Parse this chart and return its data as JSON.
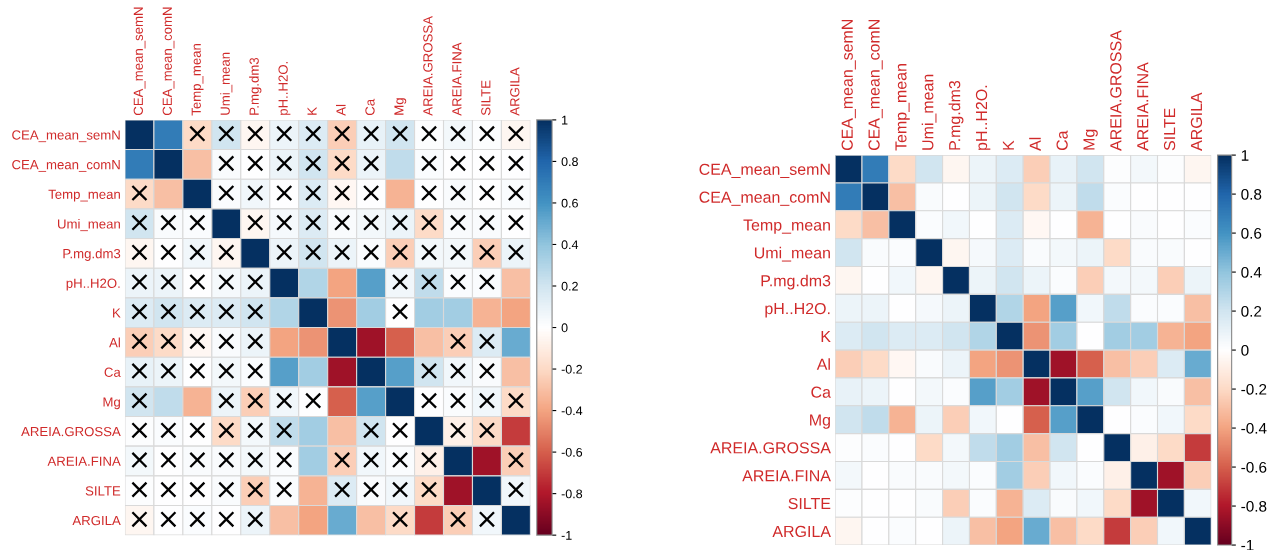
{
  "chart_data": [
    {
      "type": "heatmap",
      "categories": [
        "CEA_mean_semN",
        "CEA_mean_comN",
        "Temp_mean",
        "Umi_mean",
        "P.mg.dm3",
        "pH..H2O.",
        "K",
        "Al",
        "Ca",
        "Mg",
        "AREIA.GROSSA",
        "AREIA.FINA",
        "SILTE",
        "ARGILA"
      ],
      "y_categories": [
        "CEA_mean_semN",
        "CEA_mean_comN",
        "Temp_mean",
        "Umi_mean",
        "P.mg.dm3",
        "pH..H2O.",
        "K",
        "Al",
        "Ca",
        "Mg",
        "AREIA.GROSSA",
        "AREIA.FINA",
        "SILTE",
        "ARGILA"
      ],
      "cells": [
        [
          1,
          0.7,
          -0.2,
          0.2,
          -0.05,
          0.08,
          0.15,
          -0.25,
          0.1,
          0.2,
          0.01,
          0.05,
          0.01,
          -0.05
        ],
        [
          0.7,
          1,
          -0.3,
          0.03,
          0,
          0.08,
          0.2,
          -0.2,
          0.08,
          0.25,
          0.02,
          0,
          0,
          0
        ],
        [
          -0.2,
          -0.3,
          1,
          0.02,
          0.06,
          0,
          0.15,
          -0.04,
          0,
          -0.35,
          0,
          0.03,
          0,
          0.02
        ],
        [
          0.2,
          0.03,
          0.02,
          1,
          -0.05,
          0.04,
          0.15,
          0.03,
          0.05,
          0.08,
          -0.2,
          0.03,
          0.03,
          0
        ],
        [
          -0.05,
          0,
          0.06,
          -0.05,
          1,
          0.08,
          0.2,
          0.08,
          0.02,
          -0.25,
          0.05,
          0.05,
          -0.25,
          0.08
        ],
        [
          0.08,
          0.08,
          0,
          0.04,
          0.08,
          1,
          0.3,
          -0.4,
          0.55,
          0.06,
          0.25,
          0.02,
          0.02,
          -0.3
        ],
        [
          0.15,
          0.2,
          0.15,
          0.15,
          0.2,
          0.3,
          1,
          -0.45,
          0.35,
          0,
          0.35,
          0.35,
          -0.35,
          -0.4
        ],
        [
          -0.25,
          -0.2,
          -0.04,
          0.03,
          0.08,
          -0.4,
          -0.45,
          1,
          -0.85,
          -0.6,
          -0.3,
          -0.25,
          0.15,
          0.5
        ],
        [
          0.1,
          0.08,
          0,
          0.05,
          0.02,
          0.55,
          0.35,
          -0.85,
          1,
          0.55,
          0.2,
          0.06,
          0.03,
          -0.3
        ],
        [
          0.2,
          0.25,
          -0.35,
          0.08,
          -0.25,
          0.06,
          0,
          -0.6,
          0.55,
          1,
          0,
          0.02,
          0.06,
          -0.2
        ],
        [
          0.01,
          0.02,
          0,
          -0.2,
          0.05,
          0.25,
          0.35,
          -0.3,
          0.2,
          0,
          1,
          -0.08,
          -0.2,
          -0.7
        ],
        [
          0.05,
          0,
          0.03,
          0.03,
          0.05,
          0.02,
          0.35,
          -0.25,
          0.06,
          0.02,
          -0.08,
          1,
          -0.85,
          -0.25
        ],
        [
          0.01,
          0,
          0,
          0.03,
          -0.25,
          0.02,
          -0.35,
          0.15,
          0.03,
          0.06,
          -0.2,
          -0.85,
          1,
          0.06
        ],
        [
          -0.05,
          0,
          0.02,
          0,
          0.08,
          -0.3,
          -0.4,
          0.5,
          -0.3,
          -0.2,
          -0.7,
          -0.25,
          0.06,
          1
        ]
      ],
      "cell_labels": [
        [
          null,
          null,
          "×",
          "×",
          "×",
          "×",
          "×",
          "×",
          "×",
          "×",
          "×",
          "×",
          "×",
          "×"
        ],
        [
          null,
          null,
          null,
          "×",
          "×",
          "×",
          "×",
          "×",
          "×",
          null,
          "×",
          "×",
          "×",
          "×"
        ],
        [
          "×",
          null,
          null,
          "×",
          "×",
          "×",
          "×",
          "×",
          "×",
          null,
          "×",
          "×",
          "×",
          "×"
        ],
        [
          "×",
          "×",
          "×",
          null,
          "×",
          "×",
          "×",
          "×",
          "×",
          "×",
          "×",
          "×",
          "×",
          "×"
        ],
        [
          "×",
          "×",
          "×",
          "×",
          null,
          "×",
          "×",
          "×",
          "×",
          "×",
          "×",
          "×",
          "×",
          "×"
        ],
        [
          "×",
          "×",
          "×",
          "×",
          "×",
          null,
          null,
          null,
          null,
          "×",
          "×",
          "×",
          "×",
          null
        ],
        [
          "×",
          "×",
          "×",
          "×",
          "×",
          null,
          null,
          null,
          null,
          "×",
          null,
          null,
          null,
          null
        ],
        [
          "×",
          "×",
          "×",
          "×",
          "×",
          null,
          null,
          null,
          null,
          null,
          null,
          "×",
          "×",
          null
        ],
        [
          "×",
          "×",
          "×",
          "×",
          "×",
          null,
          null,
          null,
          null,
          null,
          "×",
          "×",
          "×",
          null
        ],
        [
          "×",
          null,
          null,
          "×",
          "×",
          "×",
          "×",
          null,
          null,
          null,
          "×",
          "×",
          "×",
          "×"
        ],
        [
          "×",
          "×",
          "×",
          "×",
          "×",
          "×",
          null,
          null,
          "×",
          "×",
          null,
          "×",
          "×",
          null
        ],
        [
          "×",
          "×",
          "×",
          "×",
          "×",
          "×",
          null,
          "×",
          "×",
          "×",
          "×",
          null,
          null,
          "×"
        ],
        [
          "×",
          "×",
          "×",
          "×",
          "×",
          "×",
          null,
          "×",
          "×",
          "×",
          "×",
          null,
          null,
          "×"
        ],
        [
          "×",
          "×",
          "×",
          "×",
          "×",
          null,
          null,
          null,
          null,
          "×",
          null,
          "×",
          "×",
          null
        ]
      ],
      "clim": [
        -1,
        1
      ],
      "cticks": [
        -1,
        -0.8,
        -0.6,
        -0.4,
        -0.2,
        0,
        0.2,
        0.4,
        0.6,
        0.8,
        1
      ]
    },
    {
      "type": "heatmap",
      "categories": [
        "CEA_mean_semN",
        "CEA_mean_comN",
        "Temp_mean",
        "Umi_mean",
        "P.mg.dm3",
        "pH..H2O.",
        "K",
        "Al",
        "Ca",
        "Mg",
        "AREIA.GROSSA",
        "AREIA.FINA",
        "SILTE",
        "ARGILA"
      ],
      "y_categories": [
        "CEA_mean_semN",
        "CEA_mean_comN",
        "Temp_mean",
        "Umi_mean",
        "P.mg.dm3",
        "pH..H2O.",
        "K",
        "Al",
        "Ca",
        "Mg",
        "AREIA.GROSSA",
        "AREIA.FINA",
        "SILTE",
        "ARGILA"
      ],
      "cells": [
        [
          1,
          0.7,
          -0.2,
          0.2,
          -0.05,
          0.08,
          0.15,
          -0.25,
          0.1,
          0.2,
          0.01,
          0.05,
          0.01,
          -0.05
        ],
        [
          0.7,
          1,
          -0.3,
          0.03,
          0,
          0.08,
          0.2,
          -0.2,
          0.08,
          0.25,
          0.02,
          0,
          0,
          0
        ],
        [
          -0.2,
          -0.3,
          1,
          0.02,
          0.06,
          0,
          0.15,
          -0.04,
          0,
          -0.35,
          0,
          0.03,
          0,
          0.02
        ],
        [
          0.2,
          0.03,
          0.02,
          1,
          -0.05,
          0.04,
          0.15,
          0.03,
          0.05,
          0.08,
          -0.2,
          0.03,
          0.03,
          0
        ],
        [
          -0.05,
          0,
          0.06,
          -0.05,
          1,
          0.08,
          0.2,
          0.08,
          0.02,
          -0.25,
          0.05,
          0.05,
          -0.25,
          0.08
        ],
        [
          0.08,
          0.08,
          0,
          0.04,
          0.08,
          1,
          0.3,
          -0.4,
          0.55,
          0.06,
          0.25,
          0.02,
          0.02,
          -0.3
        ],
        [
          0.15,
          0.2,
          0.15,
          0.15,
          0.2,
          0.3,
          1,
          -0.45,
          0.35,
          0,
          0.35,
          0.35,
          -0.35,
          -0.4
        ],
        [
          -0.25,
          -0.2,
          -0.04,
          0.03,
          0.08,
          -0.4,
          -0.45,
          1,
          -0.85,
          -0.6,
          -0.3,
          -0.25,
          0.15,
          0.5
        ],
        [
          0.1,
          0.08,
          0,
          0.05,
          0.02,
          0.55,
          0.35,
          -0.85,
          1,
          0.55,
          0.2,
          0.06,
          0.03,
          -0.3
        ],
        [
          0.2,
          0.25,
          -0.35,
          0.08,
          -0.25,
          0.06,
          0,
          -0.6,
          0.55,
          1,
          0,
          0.02,
          0.06,
          -0.2
        ],
        [
          0.01,
          0.02,
          0,
          -0.2,
          0.05,
          0.25,
          0.35,
          -0.3,
          0.2,
          0,
          1,
          -0.08,
          -0.2,
          -0.7
        ],
        [
          0.05,
          0,
          0.03,
          0.03,
          0.05,
          0.02,
          0.35,
          -0.25,
          0.06,
          0.02,
          -0.08,
          1,
          -0.85,
          -0.25
        ],
        [
          0.01,
          0,
          0,
          0.03,
          -0.25,
          0.02,
          -0.35,
          0.15,
          0.03,
          0.06,
          -0.2,
          -0.85,
          1,
          0.06
        ],
        [
          -0.05,
          0,
          0.02,
          0,
          0.08,
          -0.3,
          -0.4,
          0.5,
          -0.3,
          -0.2,
          -0.7,
          -0.25,
          0.06,
          1
        ]
      ],
      "clim": [
        -1,
        1
      ],
      "cticks": [
        -1,
        -0.8,
        -0.6,
        -0.4,
        -0.2,
        0,
        0.2,
        0.4,
        0.6,
        0.8,
        1
      ]
    }
  ]
}
